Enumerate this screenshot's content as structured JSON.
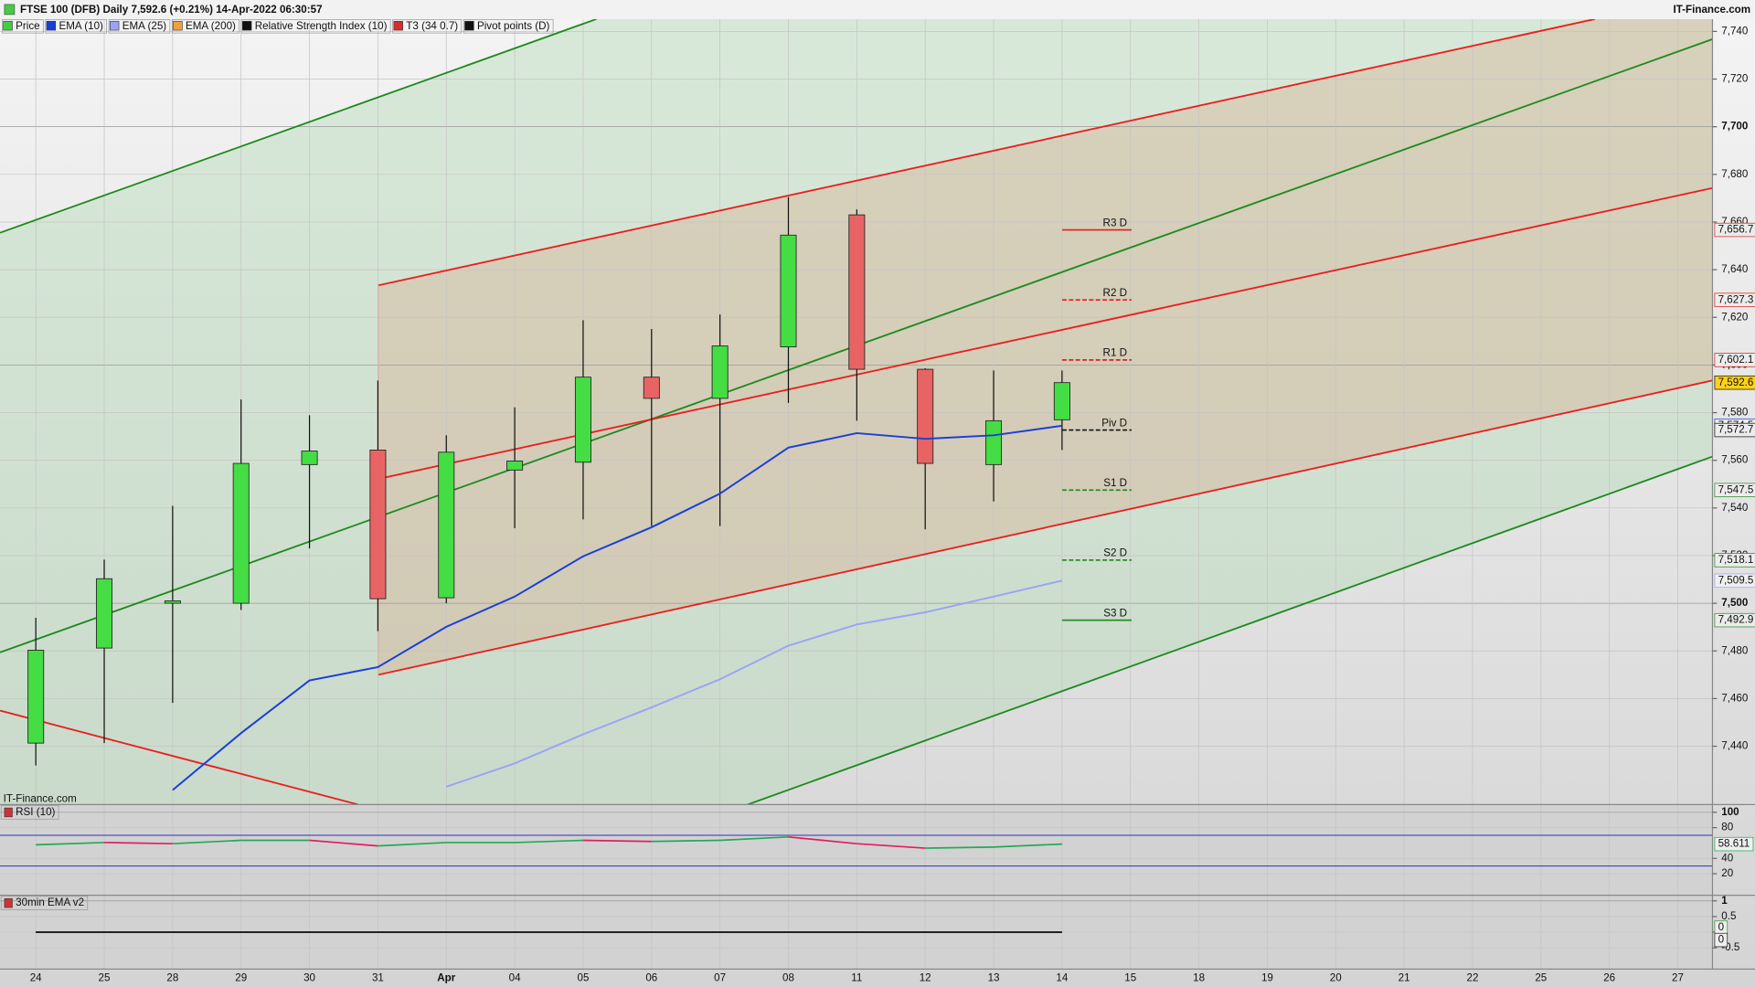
{
  "header": {
    "title": "FTSE 100 (DFB) Daily 7,592.6 (+0.21%) 14-Apr-2022 06:30:57",
    "brand": "IT-Finance.com",
    "watermark": "IT-Finance.com"
  },
  "legend": [
    {
      "name": "Price",
      "color": "#44cc44"
    },
    {
      "name": "EMA (10)",
      "color": "#1a3fd6"
    },
    {
      "name": "EMA (25)",
      "color": "#9aa4f5"
    },
    {
      "name": "EMA (200)",
      "color": "#f0a040"
    },
    {
      "name": "Relative Strength Index (10)",
      "color": "#111111"
    },
    {
      "name": "T3 (34 0.7)",
      "color": "#d03030"
    },
    {
      "name": "Pivot points (D)",
      "color": "#111111"
    }
  ],
  "chart_data": [
    {
      "type": "candlestick",
      "grid": true,
      "categories": [
        "24",
        "25",
        "28",
        "29",
        "30",
        "31",
        "Apr",
        "04",
        "05",
        "06",
        "07",
        "08",
        "11",
        "12",
        "13",
        "14",
        "15",
        "18",
        "19",
        "20",
        "21",
        "22",
        "25",
        "26",
        "27"
      ],
      "ylim": [
        7415.5,
        7745.2
      ],
      "yticks": [
        {
          "value": 7740,
          "label": "7,740"
        },
        {
          "value": 7720,
          "label": "7,720"
        },
        {
          "value": 7700,
          "label": "7,700"
        },
        {
          "value": 7680,
          "label": "7,680"
        },
        {
          "value": 7660,
          "label": "7,660"
        },
        {
          "value": 7640,
          "label": "7,640"
        },
        {
          "value": 7620,
          "label": "7,620"
        },
        {
          "value": 7600,
          "label": "7,600"
        },
        {
          "value": 7580,
          "label": "7,580"
        },
        {
          "value": 7560,
          "label": "7,560"
        },
        {
          "value": 7540,
          "label": "7,540"
        },
        {
          "value": 7520,
          "label": "7,520"
        },
        {
          "value": 7500,
          "label": "7,500"
        },
        {
          "value": 7480,
          "label": "7,480"
        },
        {
          "value": 7460,
          "label": "7,460"
        },
        {
          "value": 7440,
          "label": "7,440"
        }
      ],
      "open": [
        7441.3,
        7481.2,
        7500.0,
        7500.0,
        7558.2,
        7564.3,
        7502.3,
        7555.9,
        7559.2,
        7594.9,
        7586.0,
        7607.6,
        7663.0,
        7598.2,
        7558.2,
        7577.0,
        null,
        null,
        null,
        null,
        null,
        null,
        null,
        null,
        null
      ],
      "high": [
        7493.9,
        7518.3,
        7540.9,
        7585.5,
        7578.9,
        7593.5,
        7570.5,
        7582.2,
        7618.8,
        7615.1,
        7621.2,
        7670.5,
        7665.3,
        7598.6,
        7597.7,
        7597.7,
        null,
        null,
        null,
        null,
        null,
        null,
        null,
        null,
        null
      ],
      "low": [
        7431.9,
        7441.3,
        7458.2,
        7497.2,
        7523.0,
        7488.3,
        7500.0,
        7531.5,
        7535.2,
        7532.4,
        7532.4,
        7584.1,
        7576.6,
        7531.0,
        7542.7,
        7564.3,
        null,
        null,
        null,
        null,
        null,
        null,
        null,
        null,
        null
      ],
      "close": [
        7480.3,
        7510.3,
        7501.0,
        7558.7,
        7563.9,
        7501.9,
        7563.4,
        7559.7,
        7594.9,
        7586.0,
        7608.0,
        7654.5,
        7598.2,
        7558.7,
        7576.6,
        7592.6,
        null,
        null,
        null,
        null,
        null,
        null,
        null,
        null,
        null
      ],
      "up_color": "#44dd44",
      "down_color": "#e86464",
      "last_label": "7,592.6",
      "series": [
        {
          "name": "EMA (10)",
          "color": "#1a3fd6",
          "values": [
            null,
            null,
            7421.6,
            7445.5,
            7467.6,
            7473.2,
            7490.1,
            7502.8,
            7519.7,
            7531.9,
            7546.0,
            7565.3,
            7571.4,
            7569.0,
            7570.5,
            7574.5,
            null,
            null,
            null,
            null,
            null,
            null,
            null,
            null,
            null
          ],
          "value_labels": [
            null,
            null,
            null,
            null,
            null,
            null,
            null,
            null,
            null,
            null,
            null,
            null,
            null,
            null,
            null,
            "7,574.5",
            null,
            null,
            null,
            null,
            null,
            null,
            null,
            null,
            null
          ]
        },
        {
          "name": "EMA (25)",
          "color": "#9aa4f5",
          "values": [
            null,
            null,
            null,
            null,
            null,
            null,
            7423.0,
            7432.8,
            7445.0,
            7456.3,
            7468.1,
            7482.2,
            7491.1,
            7496.2,
            7502.8,
            7509.5,
            null,
            null,
            null,
            null,
            null,
            null,
            null,
            null,
            null
          ],
          "value_labels": [
            null,
            null,
            null,
            null,
            null,
            null,
            null,
            null,
            null,
            null,
            null,
            null,
            null,
            null,
            null,
            "7,509.5",
            null,
            null,
            null,
            null,
            null,
            null,
            null,
            null,
            null
          ]
        }
      ],
      "pivots": [
        {
          "name": "R3 D",
          "value": 7656.7,
          "label": "7,656.7",
          "color": "#e02020",
          "dashed": false
        },
        {
          "name": "R2 D",
          "value": 7627.3,
          "label": "7,627.3",
          "color": "#e02020",
          "dashed": true
        },
        {
          "name": "R1 D",
          "value": 7602.1,
          "label": "7,602.1",
          "color": "#e02020",
          "dashed": true
        },
        {
          "name": "Piv D",
          "value": 7572.7,
          "label": "7,572.7",
          "color": "#111111",
          "dashed": true
        },
        {
          "name": "S1 D",
          "value": 7547.5,
          "label": "7,547.5",
          "color": "#2a8a2a",
          "dashed": true
        },
        {
          "name": "S2 D",
          "value": 7518.1,
          "label": "7,518.1",
          "color": "#2a8a2a",
          "dashed": true
        },
        {
          "name": "S3 D",
          "value": 7492.9,
          "label": "7,492.9",
          "color": "#2a8a2a",
          "dashed": false
        }
      ]
    },
    {
      "type": "line",
      "title": "RSI (10)",
      "ylim": [
        -8,
        110
      ],
      "yticks": [
        100,
        80,
        40,
        20
      ],
      "levels": [
        70,
        30
      ],
      "level_color": "#3030c0",
      "series": [
        {
          "up_color": "#22aa55",
          "down_color": "#e0205a",
          "values": [
            57.7,
            60.6,
            59.1,
            63.5,
            63.5,
            56.2,
            60.6,
            60.6,
            63.5,
            62.0,
            63.5,
            67.9,
            59.1,
            53.3,
            54.7,
            58.6,
            null,
            null,
            null,
            null,
            null,
            null,
            null,
            null,
            null
          ],
          "value_labels": [
            null,
            null,
            null,
            null,
            null,
            null,
            null,
            null,
            null,
            null,
            null,
            null,
            null,
            null,
            null,
            "58.611",
            null,
            null,
            null,
            null,
            null,
            null,
            null,
            null,
            null
          ]
        }
      ]
    },
    {
      "type": "line",
      "title": "30min EMA v2",
      "ylim": [
        -1.18,
        1.18
      ],
      "yticks": [
        1,
        0.5,
        0,
        -0.5
      ],
      "series": [
        {
          "color": "#2a9a2a",
          "values": [
            0,
            0,
            0,
            0,
            0,
            0,
            0,
            0,
            0,
            0,
            0,
            0,
            0,
            0,
            0,
            0,
            null,
            null,
            null,
            null,
            null,
            null,
            null,
            null,
            null
          ],
          "value_labels": [
            null,
            null,
            null,
            null,
            null,
            null,
            null,
            null,
            null,
            null,
            null,
            null,
            null,
            null,
            null,
            "0",
            null,
            null,
            null,
            null,
            null,
            null,
            null,
            null,
            null
          ]
        },
        {
          "color": "#222222",
          "values": [
            0,
            0,
            0,
            0,
            0,
            0,
            0,
            0,
            0,
            0,
            0,
            0,
            0,
            0,
            0,
            0,
            null,
            null,
            null,
            null,
            null,
            null,
            null,
            null,
            null
          ],
          "value_labels": [
            null,
            null,
            null,
            null,
            null,
            null,
            null,
            null,
            null,
            null,
            null,
            null,
            null,
            null,
            null,
            "0",
            null,
            null,
            null,
            null,
            null,
            null,
            null,
            null,
            null
          ]
        }
      ]
    }
  ]
}
